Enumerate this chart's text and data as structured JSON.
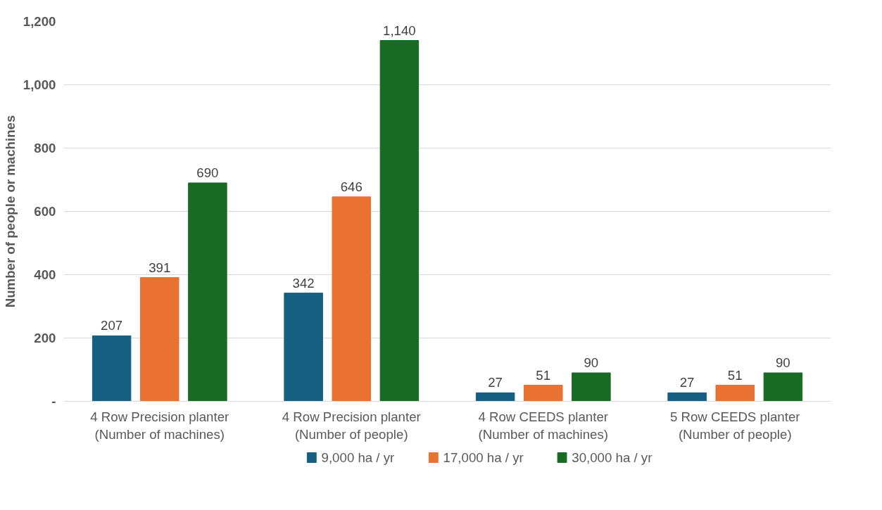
{
  "chart_data": {
    "type": "bar",
    "ylabel": "Number of people or machines",
    "categories": [
      "4 Row Precision planter\n(Number of machines)",
      "4 Row Precision planter\n(Number of people)",
      "4 Row CEEDS planter\n(Number of machines)",
      "5 Row CEEDS planter\n(Number of people)"
    ],
    "series": [
      {
        "name": "9,000 ha / yr",
        "color": "#156082",
        "values": [
          207,
          342,
          27,
          27
        ],
        "value_labels": [
          "207",
          "342",
          "27",
          "27"
        ]
      },
      {
        "name": "17,000 ha / yr",
        "color": "#e97132",
        "values": [
          391,
          646,
          51,
          51
        ],
        "value_labels": [
          "391",
          "646",
          "51",
          "51"
        ]
      },
      {
        "name": "30,000 ha / yr",
        "color": "#196b24",
        "values": [
          690,
          1140,
          90,
          90
        ],
        "value_labels": [
          "690",
          "1,140",
          "90",
          "90"
        ]
      }
    ],
    "ylim": [
      0,
      1200
    ],
    "yticks": [
      {
        "value": 0,
        "label": "-"
      },
      {
        "value": 200,
        "label": "200"
      },
      {
        "value": 400,
        "label": "400"
      },
      {
        "value": 600,
        "label": "600"
      },
      {
        "value": 800,
        "label": "800"
      },
      {
        "value": 1000,
        "label": "1,000"
      },
      {
        "value": 1200,
        "label": "1,200"
      }
    ],
    "grid": "y",
    "legend": "bottom"
  }
}
